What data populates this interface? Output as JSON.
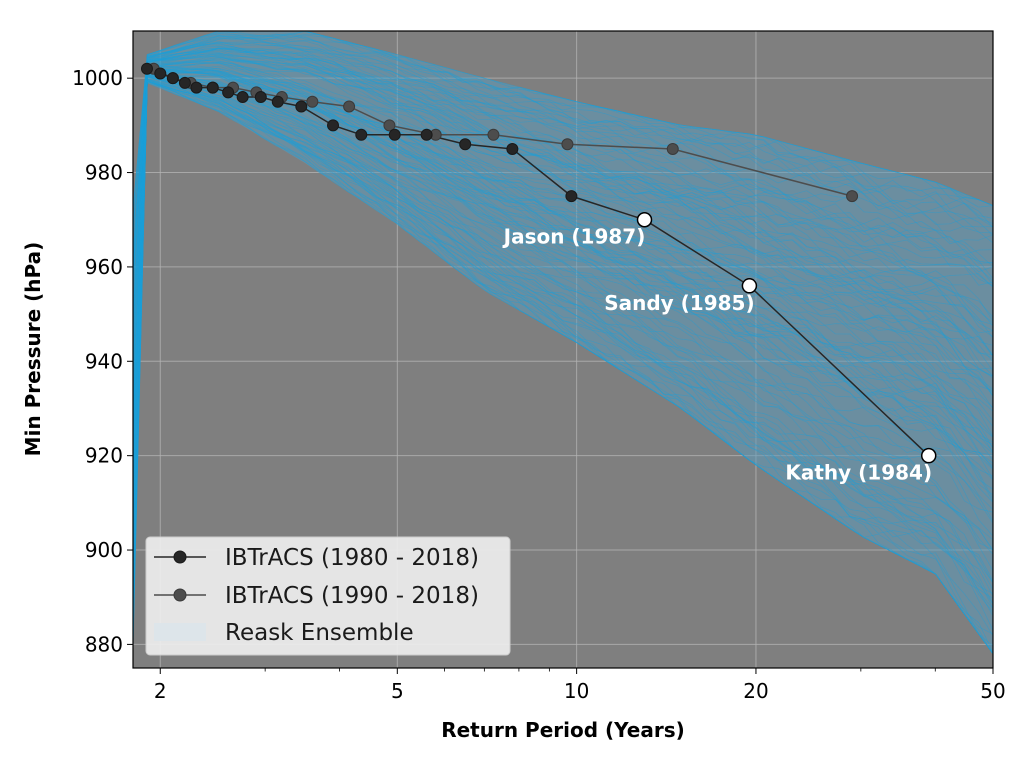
{
  "chart_data": {
    "type": "line",
    "xlabel": "Return Period (Years)",
    "ylabel": "Min Pressure (hPa)",
    "x_scale": "log",
    "xlim": [
      1.8,
      50
    ],
    "ylim": [
      875,
      1010
    ],
    "x_ticks": [
      2,
      5,
      10,
      20,
      50
    ],
    "y_ticks": [
      880,
      900,
      920,
      940,
      960,
      980,
      1000
    ],
    "grid": true,
    "legend_position": "bottom-left",
    "colors": {
      "plot_background": "#7f7f7f",
      "ensemble": "#1a9fd9",
      "ensemble_band": "#5b9bbc",
      "series_1980": "#262626",
      "series_1990": "#4d4d4d",
      "grid": "#b3b3b3"
    },
    "series": [
      {
        "name": "IBTrACS (1980 - 2018)",
        "x": [
          1.9,
          2.0,
          2.1,
          2.2,
          2.3,
          2.45,
          2.6,
          2.75,
          2.95,
          3.15,
          3.45,
          3.9,
          4.35,
          4.95,
          5.6,
          6.5,
          7.8,
          9.8,
          13.0,
          19.5,
          39.0
        ],
        "y": [
          1002,
          1001,
          1000,
          999,
          998,
          998,
          997,
          996,
          996,
          995,
          994,
          990,
          988,
          988,
          988,
          986,
          985,
          975,
          970,
          956,
          920
        ]
      },
      {
        "name": "IBTrACS (1990 - 2018)",
        "x": [
          1.95,
          2.1,
          2.25,
          2.45,
          2.65,
          2.9,
          3.2,
          3.6,
          4.15,
          4.85,
          5.8,
          7.25,
          9.65,
          14.5,
          29.0
        ],
        "y": [
          1002,
          1000,
          999,
          998,
          998,
          997,
          996,
          995,
          994,
          990,
          988,
          988,
          986,
          985,
          975
        ]
      },
      {
        "name": "Reask Ensemble",
        "type": "band",
        "x": [
          1.9,
          2.5,
          3.5,
          5,
          7,
          10,
          15,
          20,
          30,
          40,
          50
        ],
        "lower": [
          999,
          993,
          982,
          969,
          955,
          944,
          930,
          918,
          903,
          895,
          878
        ],
        "upper": [
          1005,
          1010,
          1010,
          1005,
          1000,
          995,
          990,
          988,
          982,
          978,
          973
        ]
      }
    ],
    "annotations": [
      {
        "text": "Jason (1987)",
        "x": 13.0,
        "y": 970
      },
      {
        "text": "Sandy (1985)",
        "x": 19.5,
        "y": 956
      },
      {
        "text": "Kathy (1984)",
        "x": 39.0,
        "y": 920
      }
    ]
  }
}
